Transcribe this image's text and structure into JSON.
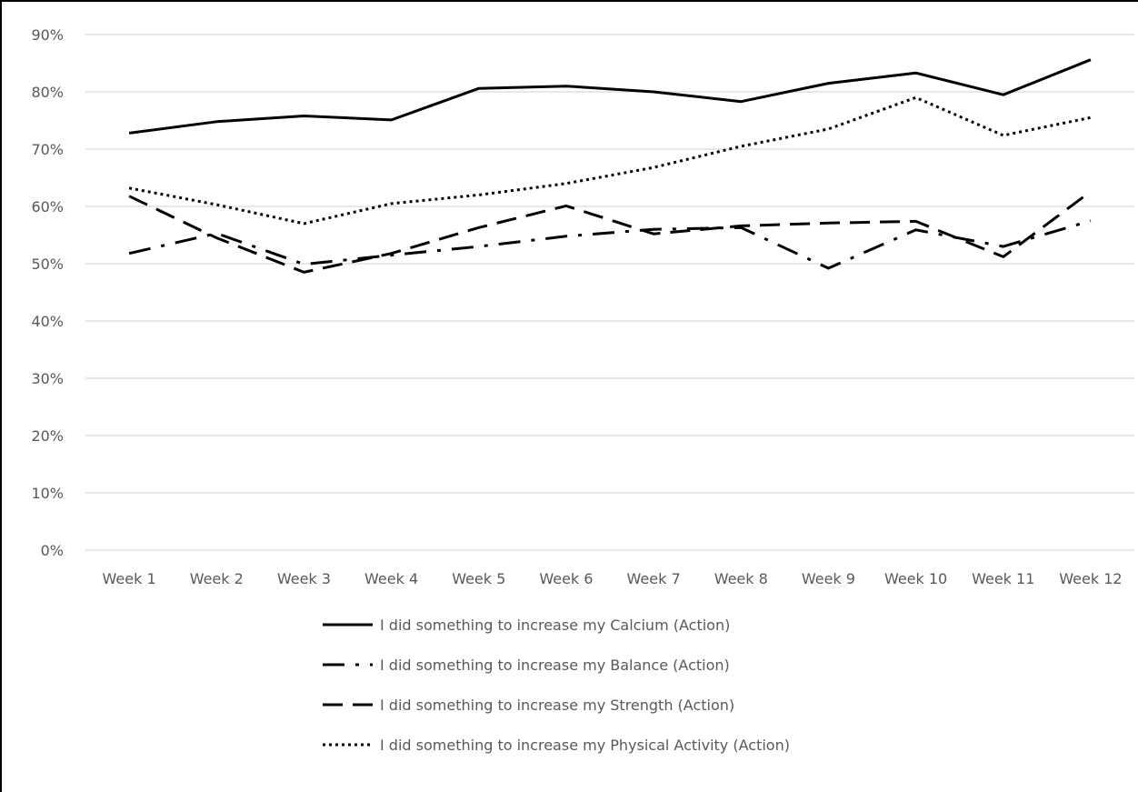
{
  "chart_data": {
    "type": "line",
    "title": "",
    "xlabel": "",
    "ylabel": "",
    "categories": [
      "Week 1",
      "Week 2",
      "Week 3",
      "Week 4",
      "Week 5",
      "Week 6",
      "Week 7",
      "Week 8",
      "Week 9",
      "Week 10",
      "Week 11",
      "Week 12"
    ],
    "ylim": [
      0,
      0.9
    ],
    "yticks": [
      {
        "value": 0.0,
        "label": "0%"
      },
      {
        "value": 0.1,
        "label": "10%"
      },
      {
        "value": 0.2,
        "label": "20%"
      },
      {
        "value": 0.3,
        "label": "30%"
      },
      {
        "value": 0.4,
        "label": "40%"
      },
      {
        "value": 0.5,
        "label": "50%"
      },
      {
        "value": 0.6,
        "label": "60%"
      },
      {
        "value": 0.7,
        "label": "70%"
      },
      {
        "value": 0.8,
        "label": "80%"
      },
      {
        "value": 0.9,
        "label": "90%"
      }
    ],
    "grid": true,
    "legend_position": "bottom",
    "series": [
      {
        "name": "I did something to increase my Calcium (Action)",
        "style": "solid",
        "color": "#000000",
        "values": [
          0.728,
          0.748,
          0.758,
          0.751,
          0.806,
          0.81,
          0.8,
          0.783,
          0.815,
          0.833,
          0.795,
          0.856
        ]
      },
      {
        "name": "I did something to increase my Balance (Action)",
        "style": "dash-dot",
        "color": "#000000",
        "values": [
          0.518,
          0.553,
          0.499,
          0.515,
          0.53,
          0.548,
          0.56,
          0.563,
          0.492,
          0.559,
          0.53,
          0.575
        ]
      },
      {
        "name": "I did something to increase my Strength (Action)",
        "style": "dashed",
        "color": "#000000",
        "values": [
          0.618,
          0.545,
          0.485,
          0.518,
          0.563,
          0.601,
          0.552,
          0.566,
          0.571,
          0.574,
          0.512,
          0.626
        ]
      },
      {
        "name": "I did something to increase my Physical Activity (Action)",
        "style": "dotted",
        "color": "#000000",
        "values": [
          0.632,
          0.603,
          0.57,
          0.605,
          0.62,
          0.64,
          0.668,
          0.705,
          0.735,
          0.79,
          0.724,
          0.755
        ]
      }
    ]
  }
}
